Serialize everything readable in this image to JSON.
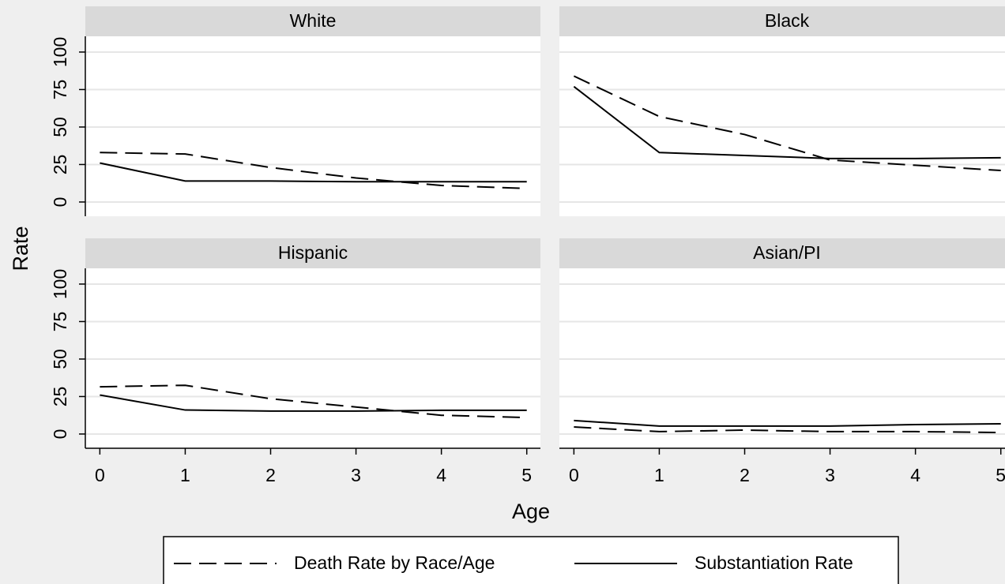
{
  "chart_data": {
    "type": "line",
    "xlabel": "Age",
    "ylabel": "Rate",
    "x": [
      0,
      1,
      2,
      3,
      4,
      5
    ],
    "xlim": [
      -0.17,
      5.16
    ],
    "xticks": [
      0,
      1,
      2,
      3,
      4,
      5
    ],
    "ylim": [
      -9.5,
      110.5
    ],
    "yticks": [
      0,
      25,
      50,
      75,
      100
    ],
    "grid": true,
    "series": [
      {
        "name": "Death Rate by Race/Age",
        "color": "#000000",
        "dash": true
      },
      {
        "name": "Substantiation Rate",
        "color": "#000000",
        "dash": false
      }
    ],
    "panels": [
      {
        "title": "White",
        "values": [
          [
            33,
            32,
            23,
            16,
            11,
            9
          ],
          [
            26,
            14,
            14,
            13.5,
            13.5,
            13.5
          ]
        ]
      },
      {
        "title": "Black",
        "values": [
          [
            84,
            57,
            45,
            28,
            24.5,
            21
          ],
          [
            77,
            33,
            31,
            29,
            29,
            29.5
          ]
        ]
      },
      {
        "title": "Hispanic",
        "values": [
          [
            31.5,
            32.5,
            23.5,
            18,
            12.5,
            11
          ],
          [
            26,
            16,
            15.3,
            15.3,
            15.8,
            15.8
          ]
        ]
      },
      {
        "title": "Asian/PI",
        "values": [
          [
            4.7,
            1.6,
            2.6,
            1.6,
            1.6,
            1
          ],
          [
            9,
            5.3,
            5.3,
            5.3,
            6.3,
            6.8
          ]
        ]
      }
    ]
  }
}
